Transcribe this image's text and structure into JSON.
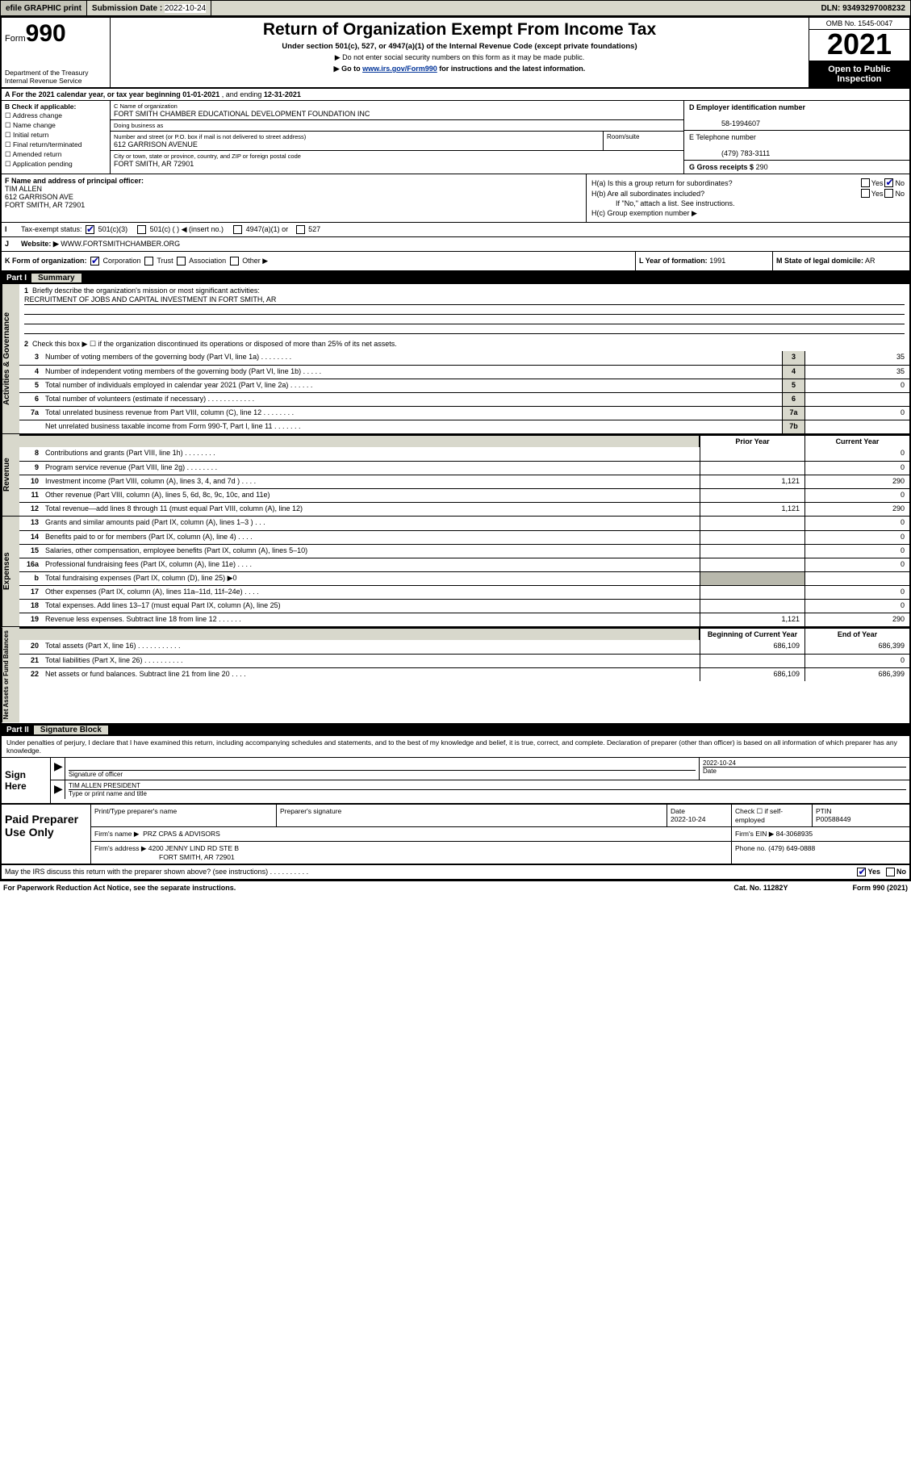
{
  "topbar": {
    "efile": "efile GRAPHIC print",
    "subdate_lbl": "Submission Date :",
    "subdate": "2022-10-24",
    "dln_lbl": "DLN:",
    "dln": "93493297008232"
  },
  "header": {
    "form_lbl": "Form",
    "form_no": "990",
    "dept": "Department of the Treasury\nInternal Revenue Service",
    "title": "Return of Organization Exempt From Income Tax",
    "sub": "Under section 501(c), 527, or 4947(a)(1) of the Internal Revenue Code (except private foundations)",
    "sub2a": "▶ Do not enter social security numbers on this form as it may be made public.",
    "sub2b_pre": "▶ Go to ",
    "sub2b_link": "www.irs.gov/Form990",
    "sub2b_post": " for instructions and the latest information.",
    "omb": "OMB No. 1545-0047",
    "year": "2021",
    "otp": "Open to Public Inspection"
  },
  "rowA": {
    "label": "A For the 2021 calendar year, or tax year beginning ",
    "begin": "01-01-2021",
    "mid": " , and ending ",
    "end": "12-31-2021"
  },
  "B": {
    "hdr": "B Check if applicable:",
    "items": [
      "Address change",
      "Name change",
      "Initial return",
      "Final return/terminated",
      "Amended return",
      "Application pending"
    ]
  },
  "C": {
    "name_lbl": "C Name of organization",
    "name": "FORT SMITH CHAMBER EDUCATIONAL DEVELOPMENT FOUNDATION INC",
    "dba_lbl": "Doing business as",
    "dba": "",
    "street_lbl": "Number and street (or P.O. box if mail is not delivered to street address)",
    "street": "612 GARRISON AVENUE",
    "room_lbl": "Room/suite",
    "city_lbl": "City or town, state or province, country, and ZIP or foreign postal code",
    "city": "FORT SMITH, AR  72901"
  },
  "D": {
    "lbl": "D Employer identification number",
    "val": "58-1994607"
  },
  "E": {
    "lbl": "E Telephone number",
    "val": "(479) 783-3111"
  },
  "G": {
    "lbl": "G Gross receipts $",
    "val": "290"
  },
  "F": {
    "lbl": "F Name and address of principal officer:",
    "name": "TIM ALLEN",
    "street": "612 GARRISON AVE",
    "city": "FORT SMITH, AR  72901"
  },
  "H": {
    "a": "H(a)  Is this a group return for subordinates?",
    "b": "H(b)  Are all subordinates included?",
    "b2": "If \"No,\" attach a list. See instructions.",
    "c": "H(c)  Group exemption number ▶",
    "yes": "Yes",
    "no": "No"
  },
  "I": {
    "lbl": "Tax-exempt status:",
    "o1": "501(c)(3)",
    "o2": "501(c) (  ) ◀ (insert no.)",
    "o3": "4947(a)(1) or",
    "o4": "527"
  },
  "J": {
    "lbl": "Website: ▶",
    "val": "WWW.FORTSMITHCHAMBER.ORG"
  },
  "K": {
    "lbl": "K Form of organization:",
    "o1": "Corporation",
    "o2": "Trust",
    "o3": "Association",
    "o4": "Other ▶"
  },
  "L": {
    "lbl": "L Year of formation:",
    "val": "1991"
  },
  "M": {
    "lbl": "M State of legal domicile:",
    "val": "AR"
  },
  "partI": {
    "num": "Part I",
    "title": "Summary"
  },
  "summary": {
    "l1_lbl": "Briefly describe the organization's mission or most significant activities:",
    "l1_val": "RECRUITMENT OF JOBS AND CAPITAL INVESTMENT IN FORT SMITH, AR",
    "l2": "Check this box ▶ ☐  if the organization discontinued its operations or disposed of more than 25% of its net assets.",
    "lines_ag": [
      {
        "n": "3",
        "t": "Number of voting members of the governing body (Part VI, line 1a)   .   .   .   .   .   .   .   .",
        "b": "3",
        "v": "35"
      },
      {
        "n": "4",
        "t": "Number of independent voting members of the governing body (Part VI, line 1b)   .   .   .   .   .",
        "b": "4",
        "v": "35"
      },
      {
        "n": "5",
        "t": "Total number of individuals employed in calendar year 2021 (Part V, line 2a)   .   .   .   .   .   .",
        "b": "5",
        "v": "0"
      },
      {
        "n": "6",
        "t": "Total number of volunteers (estimate if necessary)   .   .   .   .   .   .   .   .   .   .   .   .",
        "b": "6",
        "v": ""
      },
      {
        "n": "7a",
        "t": "Total unrelated business revenue from Part VIII, column (C), line 12   .   .   .   .   .   .   .   .",
        "b": "7a",
        "v": "0"
      },
      {
        "n": "",
        "t": "Net unrelated business taxable income from Form 990-T, Part I, line 11   .   .   .   .   .   .   .",
        "b": "7b",
        "v": ""
      }
    ],
    "prior_lbl": "Prior Year",
    "curr_lbl": "Current Year",
    "rev": [
      {
        "n": "8",
        "t": "Contributions and grants (Part VIII, line 1h)   .   .   .   .   .   .   .   .",
        "p": "",
        "c": "0"
      },
      {
        "n": "9",
        "t": "Program service revenue (Part VIII, line 2g)   .   .   .   .   .   .   .   .",
        "p": "",
        "c": "0"
      },
      {
        "n": "10",
        "t": "Investment income (Part VIII, column (A), lines 3, 4, and 7d )   .   .   .   .",
        "p": "1,121",
        "c": "290"
      },
      {
        "n": "11",
        "t": "Other revenue (Part VIII, column (A), lines 5, 6d, 8c, 9c, 10c, and 11e)",
        "p": "",
        "c": "0"
      },
      {
        "n": "12",
        "t": "Total revenue—add lines 8 through 11 (must equal Part VIII, column (A), line 12)",
        "p": "1,121",
        "c": "290"
      }
    ],
    "exp": [
      {
        "n": "13",
        "t": "Grants and similar amounts paid (Part IX, column (A), lines 1–3 )   .   .   .",
        "p": "",
        "c": "0"
      },
      {
        "n": "14",
        "t": "Benefits paid to or for members (Part IX, column (A), line 4)   .   .   .   .",
        "p": "",
        "c": "0"
      },
      {
        "n": "15",
        "t": "Salaries, other compensation, employee benefits (Part IX, column (A), lines 5–10)",
        "p": "",
        "c": "0"
      },
      {
        "n": "16a",
        "t": "Professional fundraising fees (Part IX, column (A), line 11e)   .   .   .   .",
        "p": "",
        "c": "0"
      },
      {
        "n": "b",
        "t": "Total fundraising expenses (Part IX, column (D), line 25) ▶0",
        "p": "shade",
        "c": "shade"
      },
      {
        "n": "17",
        "t": "Other expenses (Part IX, column (A), lines 11a–11d, 11f–24e)   .   .   .   .",
        "p": "",
        "c": "0"
      },
      {
        "n": "18",
        "t": "Total expenses. Add lines 13–17 (must equal Part IX, column (A), line 25)",
        "p": "",
        "c": "0"
      },
      {
        "n": "19",
        "t": "Revenue less expenses. Subtract line 18 from line 12   .   .   .   .   .   .",
        "p": "1,121",
        "c": "290"
      }
    ],
    "na_hdr_l": "Beginning of Current Year",
    "na_hdr_r": "End of Year",
    "na": [
      {
        "n": "20",
        "t": "Total assets (Part X, line 16)   .   .   .   .   .   .   .   .   .   .   .",
        "p": "686,109",
        "c": "686,399"
      },
      {
        "n": "21",
        "t": "Total liabilities (Part X, line 26)   .   .   .   .   .   .   .   .   .   .",
        "p": "",
        "c": "0"
      },
      {
        "n": "22",
        "t": "Net assets or fund balances. Subtract line 21 from line 20   .   .   .   .",
        "p": "686,109",
        "c": "686,399"
      }
    ]
  },
  "vlabels": {
    "ag": "Activities & Governance",
    "rev": "Revenue",
    "exp": "Expenses",
    "na": "Net Assets or Fund Balances"
  },
  "partII": {
    "num": "Part II",
    "title": "Signature Block"
  },
  "sig": {
    "intro": "Under penalties of perjury, I declare that I have examined this return, including accompanying schedules and statements, and to the best of my knowledge and belief, it is true, correct, and complete. Declaration of preparer (other than officer) is based on all information of which preparer has any knowledge.",
    "here": "Sign Here",
    "sig_lbl": "Signature of officer",
    "date_lbl": "Date",
    "date": "2022-10-24",
    "name": "TIM ALLEN PRESIDENT",
    "name_lbl": "Type or print name and title"
  },
  "prep": {
    "hdr": "Paid Preparer Use Only",
    "r1": {
      "c1": "Print/Type preparer's name",
      "c2": "Preparer's signature",
      "c3l": "Date",
      "c3v": "2022-10-24",
      "c4": "Check ☐ if self-employed",
      "c5l": "PTIN",
      "c5v": "P00588449"
    },
    "r2": {
      "c1l": "Firm's name    ▶",
      "c1v": "PRZ CPAS & ADVISORS",
      "c2l": "Firm's EIN ▶",
      "c2v": "84-3068935"
    },
    "r3": {
      "c1l": "Firm's address ▶",
      "c1v": "4200 JENNY LIND RD STE B",
      "c1v2": "FORT SMITH, AR  72901",
      "c2l": "Phone no.",
      "c2v": "(479) 649-0888"
    }
  },
  "foot": {
    "q": "May the IRS discuss this return with the preparer shown above? (see instructions)   .   .   .   .   .   .   .   .   .   .",
    "yes": "Yes",
    "no": "No",
    "pra": "For Paperwork Reduction Act Notice, see the separate instructions.",
    "cat": "Cat. No. 11282Y",
    "form": "Form 990 (2021)"
  }
}
